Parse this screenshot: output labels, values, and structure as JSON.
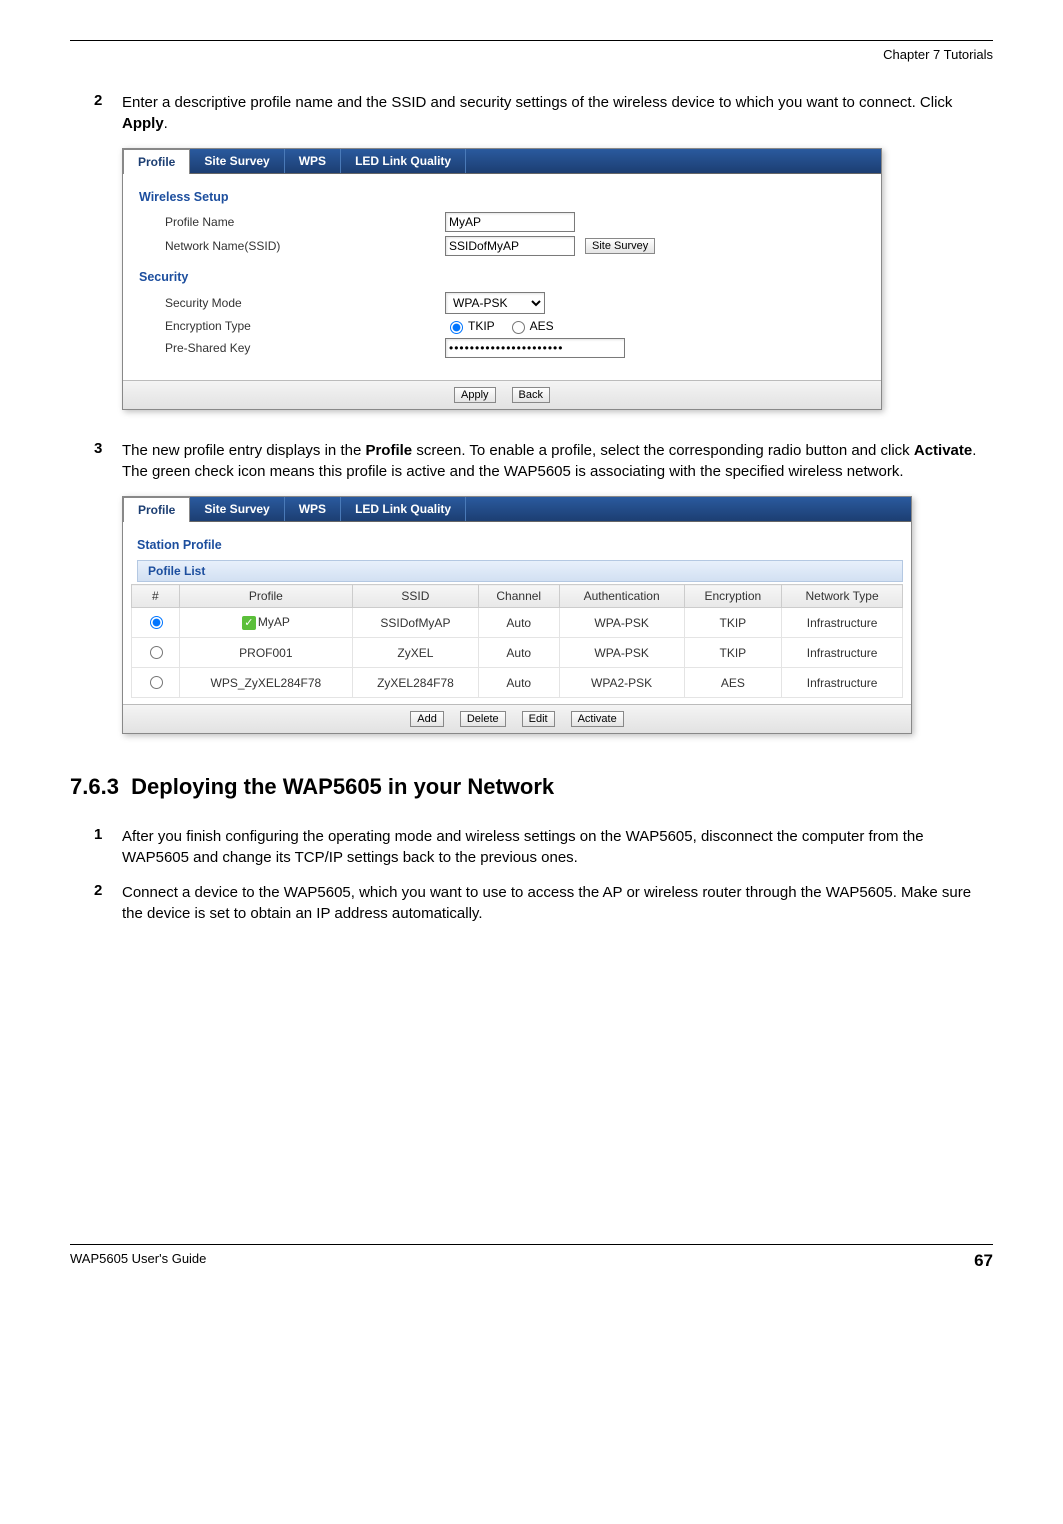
{
  "header": {
    "chapter": "Chapter 7 Tutorials"
  },
  "steps_a": [
    {
      "num": "2",
      "html": "Enter a descriptive profile name and the SSID and security settings of the wireless device to which you want to connect. Click <b>Apply</b>."
    },
    {
      "num": "3",
      "html": "The new profile entry displays in the <b>Profile</b> screen. To enable a profile, select the corresponding radio button and click <b>Activate</b>. The green check icon means this profile is active and the WAP5605 is associating with the specified wireless network."
    }
  ],
  "section": {
    "number": "7.6.3",
    "title": "Deploying the WAP5605 in your Network"
  },
  "steps_b": [
    {
      "num": "1",
      "text": "After you finish configuring the operating mode and wireless settings on the WAP5605, disconnect the computer from the WAP5605 and change its TCP/IP settings back to the previous ones."
    },
    {
      "num": "2",
      "text": "Connect a device to the WAP5605, which you want to use to access the AP or wireless router through the WAP5605. Make sure the device is set to obtain an IP address automatically."
    }
  ],
  "panel1": {
    "tabs": [
      "Profile",
      "Site Survey",
      "WPS",
      "LED Link Quality"
    ],
    "active_tab": 0,
    "wireless_setup_title": "Wireless Setup",
    "security_title": "Security",
    "profile_name_label": "Profile Name",
    "profile_name_value": "MyAP",
    "ssid_label": "Network Name(SSID)",
    "ssid_value": "SSIDofMyAP",
    "site_survey_btn": "Site Survey",
    "sec_mode_label": "Security Mode",
    "sec_mode_value": "WPA-PSK",
    "enc_label": "Encryption Type",
    "enc_options": [
      "TKIP",
      "AES"
    ],
    "enc_selected": "TKIP",
    "psk_label": "Pre-Shared Key",
    "psk_value": "••••••••••••••••••••••",
    "footer_buttons": [
      "Apply",
      "Back"
    ]
  },
  "panel2": {
    "tabs": [
      "Profile",
      "Site Survey",
      "WPS",
      "LED Link Quality"
    ],
    "active_tab": 0,
    "station_profile_title": "Station Profile",
    "list_title": "Pofile List",
    "columns": [
      "#",
      "Profile",
      "SSID",
      "Channel",
      "Authentication",
      "Encryption",
      "Network Type"
    ],
    "rows": [
      {
        "selected": true,
        "active": true,
        "profile": "MyAP",
        "ssid": "SSIDofMyAP",
        "channel": "Auto",
        "auth": "WPA-PSK",
        "enc": "TKIP",
        "ntype": "Infrastructure"
      },
      {
        "selected": false,
        "active": false,
        "profile": "PROF001",
        "ssid": "ZyXEL",
        "channel": "Auto",
        "auth": "WPA-PSK",
        "enc": "TKIP",
        "ntype": "Infrastructure"
      },
      {
        "selected": false,
        "active": false,
        "profile": "WPS_ZyXEL284F78",
        "ssid": "ZyXEL284F78",
        "channel": "Auto",
        "auth": "WPA2-PSK",
        "enc": "AES",
        "ntype": "Infrastructure"
      }
    ],
    "footer_buttons": [
      "Add",
      "Delete",
      "Edit",
      "Activate"
    ]
  },
  "footer": {
    "guide": "WAP5605 User's Guide",
    "page": "67"
  }
}
